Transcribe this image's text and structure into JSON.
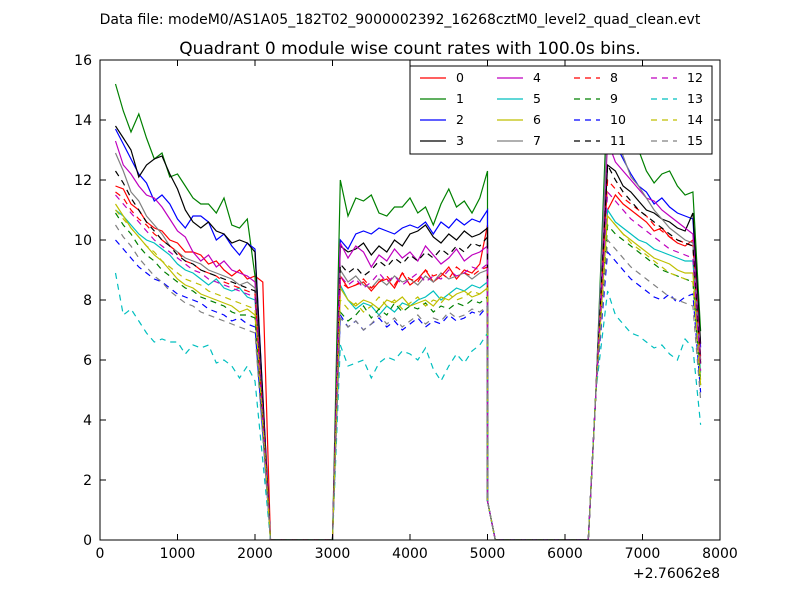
{
  "chart_data": {
    "type": "line",
    "suptitle": "Data file: modeM0/AS1A05_182T02_9000002392_16268cztM0_level2_quad_clean.evt",
    "title": "Quadrant 0 module wise count rates with 100.0s bins.",
    "xlabel": "",
    "ylabel": "",
    "xlim": [
      0,
      8000
    ],
    "ylim": [
      0,
      16
    ],
    "x_offset_label": "+2.76062e8",
    "xticks": [
      "0",
      "1000",
      "2000",
      "3000",
      "4000",
      "5000",
      "6000",
      "7000",
      "8000"
    ],
    "yticks": [
      "0",
      "2",
      "4",
      "6",
      "8",
      "10",
      "12",
      "14",
      "16"
    ],
    "grid": false,
    "legend": {
      "placement": "top-right",
      "columns": 4
    },
    "segments": [
      {
        "x_start": 200,
        "step": 100,
        "n": 20
      },
      {
        "x_start": 3100,
        "step": 100,
        "n": 20
      },
      {
        "x_start": 6550,
        "step": 100,
        "n": 12
      }
    ],
    "gap_x": [
      2200,
      2300,
      2900,
      3000,
      5000,
      5100,
      6300,
      6400
    ],
    "series": [
      {
        "name": "0",
        "color": "#ff0000",
        "dash": false,
        "seg1": [
          11.8,
          11.7,
          11.2,
          11.0,
          10.6,
          10.4,
          10.3,
          10.0,
          9.9,
          9.6,
          9.6,
          9.5,
          9.2,
          9.3,
          9.0,
          8.8,
          9.0,
          8.7,
          8.8,
          8.6
        ],
        "seg2": [
          8.8,
          8.4,
          8.5,
          8.6,
          8.3,
          8.6,
          8.7,
          8.4,
          8.9,
          8.5,
          8.7,
          9.0,
          8.6,
          8.8,
          9.1,
          8.7,
          9.0,
          8.9,
          9.2,
          10.5
        ],
        "seg3": [
          11.0,
          11.5,
          11.2,
          11.0,
          10.8,
          10.6,
          10.3,
          10.4,
          10.1,
          9.9,
          9.8,
          10.0
        ]
      },
      {
        "name": "1",
        "color": "#008000",
        "dash": false,
        "seg1": [
          15.2,
          14.3,
          13.6,
          14.2,
          13.4,
          12.7,
          12.9,
          12.1,
          12.2,
          11.8,
          11.4,
          11.2,
          11.2,
          10.9,
          11.4,
          10.5,
          10.4,
          10.7,
          8.8,
          null
        ],
        "seg2": [
          12.0,
          10.8,
          11.4,
          11.3,
          11.5,
          10.9,
          10.8,
          11.1,
          11.1,
          11.4,
          10.9,
          11.1,
          10.5,
          11.2,
          11.7,
          11.1,
          11.3,
          10.9,
          11.4,
          12.3
        ],
        "seg3": [
          15.0,
          14.3,
          13.9,
          13.3,
          13.0,
          12.3,
          11.9,
          12.2,
          12.3,
          11.8,
          11.5,
          11.6
        ]
      },
      {
        "name": "2",
        "color": "#0000ff",
        "dash": false,
        "seg1": [
          13.7,
          13.2,
          12.7,
          12.2,
          11.9,
          11.3,
          11.5,
          11.2,
          10.7,
          10.4,
          10.8,
          10.8,
          10.6,
          10.0,
          10.2,
          9.8,
          9.5,
          9.9,
          9.7,
          null
        ],
        "seg2": [
          10.0,
          9.7,
          10.2,
          10.3,
          10.2,
          10.4,
          10.3,
          10.2,
          10.4,
          10.5,
          10.4,
          10.6,
          10.2,
          10.6,
          10.4,
          10.7,
          10.5,
          10.7,
          10.6,
          11.0
        ],
        "seg3": [
          14.0,
          13.2,
          12.7,
          12.2,
          11.8,
          11.6,
          11.2,
          11.4,
          11.1,
          10.9,
          10.8,
          10.7
        ]
      },
      {
        "name": "3",
        "color": "#000000",
        "dash": false,
        "seg1": [
          13.8,
          13.4,
          13.0,
          12.1,
          12.5,
          12.7,
          12.8,
          12.2,
          11.7,
          11.0,
          10.6,
          10.4,
          10.6,
          10.3,
          10.2,
          9.9,
          10.0,
          9.9,
          9.6,
          null
        ],
        "seg2": [
          9.8,
          9.6,
          9.7,
          9.9,
          9.5,
          9.8,
          9.6,
          10.0,
          9.8,
          10.2,
          10.3,
          10.5,
          10.1,
          9.9,
          10.2,
          10.0,
          10.3,
          10.1,
          10.2,
          10.4
        ],
        "seg3": [
          12.5,
          12.3,
          11.8,
          11.6,
          11.3,
          11.0,
          10.9,
          10.7,
          10.6,
          10.4,
          10.3,
          10.9
        ]
      },
      {
        "name": "4",
        "color": "#bf00bf",
        "dash": false,
        "seg1": [
          13.3,
          12.5,
          12.2,
          11.8,
          11.5,
          11.4,
          11.1,
          10.7,
          10.3,
          10.1,
          9.6,
          9.3,
          9.5,
          9.1,
          9.3,
          9.0,
          8.9,
          8.8,
          8.6,
          null
        ],
        "seg2": [
          9.9,
          9.4,
          9.8,
          9.6,
          9.1,
          9.5,
          9.3,
          9.7,
          9.4,
          9.6,
          9.3,
          9.8,
          9.5,
          9.2,
          9.4,
          9.7,
          9.3,
          9.5,
          9.6,
          9.8
        ],
        "seg3": [
          13.3,
          12.6,
          12.3,
          12.0,
          11.7,
          11.4,
          11.3,
          11.0,
          10.8,
          10.6,
          10.4,
          10.2
        ]
      },
      {
        "name": "5",
        "color": "#00bfbf",
        "dash": false,
        "seg1": [
          11.0,
          10.8,
          10.5,
          10.2,
          10.0,
          9.9,
          9.7,
          9.5,
          9.2,
          9.0,
          8.9,
          8.7,
          8.5,
          8.7,
          8.4,
          8.3,
          8.4,
          8.1,
          8.0,
          null
        ],
        "seg2": [
          8.5,
          8.0,
          7.7,
          7.9,
          7.8,
          7.5,
          7.8,
          7.6,
          7.9,
          7.8,
          8.0,
          8.1,
          8.3,
          8.0,
          8.2,
          8.4,
          8.3,
          8.5,
          8.4,
          8.6
        ],
        "seg3": [
          11.0,
          10.6,
          10.4,
          10.2,
          10.0,
          9.9,
          9.7,
          9.6,
          9.5,
          9.4,
          9.3,
          9.3
        ]
      },
      {
        "name": "6",
        "color": "#bfbf00",
        "dash": false,
        "seg1": [
          11.2,
          10.8,
          10.4,
          10.1,
          9.8,
          9.5,
          9.3,
          9.0,
          8.7,
          8.5,
          8.4,
          8.2,
          8.1,
          8.0,
          7.9,
          7.8,
          7.6,
          7.7,
          7.5,
          null
        ],
        "seg2": [
          8.4,
          8.0,
          7.8,
          8.0,
          7.9,
          7.7,
          8.0,
          7.9,
          8.1,
          7.8,
          7.9,
          8.0,
          7.8,
          8.1,
          8.0,
          8.2,
          8.3,
          8.1,
          8.2,
          8.4
        ],
        "seg3": [
          10.8,
          10.5,
          10.2,
          10.0,
          9.8,
          9.6,
          9.4,
          9.3,
          9.2,
          9.0,
          8.9,
          8.9
        ]
      },
      {
        "name": "7",
        "color": "#808080",
        "dash": false,
        "seg1": [
          12.9,
          12.3,
          11.6,
          11.3,
          10.8,
          10.5,
          10.2,
          9.8,
          9.6,
          9.4,
          9.3,
          9.2,
          9.0,
          8.9,
          8.8,
          8.7,
          8.5,
          8.6,
          8.4,
          null
        ],
        "seg2": [
          9.0,
          8.6,
          8.8,
          8.5,
          8.4,
          8.7,
          8.5,
          8.8,
          8.6,
          8.7,
          8.5,
          8.8,
          8.6,
          8.9,
          8.7,
          8.8,
          8.9,
          8.7,
          8.9,
          9.0
        ],
        "seg3": [
          14.0,
          13.5,
          12.8,
          12.1,
          11.8,
          11.4,
          11.0,
          10.7,
          10.4,
          10.2,
          10.0,
          9.9
        ]
      },
      {
        "name": "8",
        "color": "#ff0000",
        "dash": true,
        "seg1": [
          11.6,
          11.4,
          11.0,
          10.7,
          10.5,
          10.2,
          10.0,
          9.8,
          9.6,
          9.3,
          9.2,
          9.0,
          8.9,
          8.8,
          8.6,
          8.5,
          8.4,
          8.3,
          8.2,
          null
        ],
        "seg2": [
          8.6,
          8.4,
          8.5,
          8.7,
          8.4,
          8.6,
          8.8,
          8.5,
          8.9,
          8.7,
          8.6,
          9.0,
          8.8,
          8.9,
          8.7,
          9.1,
          8.9,
          8.8,
          9.0,
          9.1
        ],
        "seg3": [
          12.0,
          11.7,
          11.4,
          11.2,
          11.0,
          10.8,
          10.5,
          10.3,
          10.1,
          10.0,
          9.9,
          9.8
        ]
      },
      {
        "name": "9",
        "color": "#008000",
        "dash": true,
        "seg1": [
          10.9,
          10.5,
          10.2,
          9.8,
          9.5,
          9.3,
          9.0,
          8.8,
          8.6,
          8.4,
          8.3,
          8.1,
          8.0,
          7.9,
          7.8,
          7.6,
          7.5,
          7.5,
          7.4,
          null
        ],
        "seg2": [
          7.6,
          7.3,
          7.5,
          7.8,
          7.4,
          7.7,
          7.5,
          7.9,
          7.6,
          7.8,
          7.7,
          7.9,
          7.6,
          7.8,
          7.7,
          7.9,
          7.8,
          8.0,
          7.9,
          8.1
        ],
        "seg3": [
          10.5,
          10.2,
          10.0,
          9.8,
          9.6,
          9.4,
          9.2,
          9.0,
          8.9,
          8.8,
          8.7,
          8.6
        ]
      },
      {
        "name": "10",
        "color": "#0000ff",
        "dash": true,
        "seg1": [
          10.0,
          9.7,
          9.4,
          9.1,
          8.9,
          8.7,
          8.6,
          8.4,
          8.2,
          8.1,
          8.0,
          7.9,
          7.7,
          7.6,
          7.5,
          7.3,
          7.4,
          7.2,
          7.1,
          null
        ],
        "seg2": [
          7.5,
          7.1,
          7.3,
          7.0,
          7.2,
          7.4,
          7.1,
          7.3,
          7.0,
          7.2,
          7.4,
          7.1,
          7.3,
          7.2,
          7.5,
          7.3,
          7.4,
          7.6,
          7.5,
          7.8
        ],
        "seg3": [
          9.6,
          9.3,
          9.0,
          8.7,
          8.5,
          8.3,
          8.1,
          8.0,
          8.2,
          7.9,
          8.1,
          8.2
        ]
      },
      {
        "name": "11",
        "color": "#000000",
        "dash": true,
        "seg1": [
          12.3,
          11.9,
          11.4,
          11.0,
          10.6,
          10.3,
          10.0,
          9.8,
          9.5,
          9.3,
          9.2,
          9.0,
          8.9,
          8.8,
          8.7,
          8.6,
          8.5,
          8.4,
          8.3,
          null
        ],
        "seg2": [
          9.2,
          8.9,
          9.1,
          8.8,
          9.0,
          9.3,
          9.1,
          9.4,
          9.2,
          9.5,
          9.3,
          9.6,
          9.4,
          9.7,
          9.5,
          9.8,
          9.6,
          9.9,
          9.8,
          10.1
        ],
        "seg3": [
          12.5,
          12.0,
          11.6,
          11.3,
          11.0,
          10.8,
          10.6,
          10.4,
          10.2,
          10.0,
          9.9,
          9.8
        ]
      },
      {
        "name": "12",
        "color": "#bf00bf",
        "dash": true,
        "seg1": [
          11.5,
          11.2,
          10.9,
          10.6,
          10.3,
          10.0,
          9.8,
          9.6,
          9.4,
          9.2,
          9.0,
          8.9,
          8.7,
          8.6,
          8.5,
          8.4,
          8.3,
          8.2,
          8.1,
          null
        ],
        "seg2": [
          8.8,
          8.5,
          8.7,
          8.4,
          8.6,
          8.9,
          8.6,
          8.8,
          8.5,
          8.7,
          8.9,
          8.6,
          8.8,
          8.7,
          9.0,
          8.8,
          8.9,
          9.1,
          9.0,
          9.2
        ],
        "seg3": [
          11.6,
          11.3,
          11.0,
          10.7,
          10.5,
          10.3,
          10.1,
          9.9,
          9.7,
          9.6,
          9.5,
          9.4
        ]
      },
      {
        "name": "13",
        "color": "#00bfbf",
        "dash": true,
        "seg1": [
          8.9,
          7.5,
          7.7,
          7.3,
          6.9,
          6.6,
          6.7,
          6.6,
          6.6,
          6.2,
          6.5,
          6.4,
          6.5,
          5.9,
          6.0,
          5.8,
          5.4,
          5.8,
          5.3,
          null
        ],
        "seg2": [
          6.5,
          5.8,
          5.9,
          6.0,
          5.4,
          5.9,
          6.1,
          6.0,
          6.3,
          6.2,
          6.0,
          6.4,
          5.7,
          5.3,
          5.8,
          6.2,
          5.9,
          6.3,
          6.5,
          6.9
        ],
        "seg3": [
          8.3,
          7.5,
          7.2,
          6.9,
          6.8,
          6.6,
          6.4,
          6.5,
          6.2,
          6.0,
          6.7,
          6.4
        ]
      },
      {
        "name": "14",
        "color": "#bfbf00",
        "dash": true,
        "seg1": [
          11.0,
          10.7,
          10.4,
          10.1,
          9.8,
          9.6,
          9.3,
          9.1,
          8.9,
          8.7,
          8.6,
          8.5,
          8.3,
          8.2,
          8.1,
          8.0,
          7.9,
          7.8,
          7.7,
          null
        ],
        "seg2": [
          8.0,
          7.7,
          7.9,
          7.6,
          7.8,
          8.1,
          7.8,
          8.0,
          7.7,
          7.9,
          8.1,
          7.8,
          8.0,
          7.9,
          8.2,
          8.0,
          8.1,
          8.3,
          8.2,
          8.4
        ],
        "seg3": [
          10.8,
          10.5,
          10.2,
          9.9,
          9.7,
          9.5,
          9.3,
          9.1,
          8.9,
          8.8,
          8.7,
          8.6
        ]
      },
      {
        "name": "15",
        "color": "#808080",
        "dash": true,
        "seg1": [
          10.5,
          10.1,
          9.8,
          9.4,
          9.1,
          8.8,
          8.6,
          8.3,
          8.1,
          7.9,
          7.8,
          7.6,
          7.5,
          7.4,
          7.3,
          7.2,
          7.1,
          7.0,
          6.9,
          null
        ],
        "seg2": [
          7.4,
          7.1,
          7.3,
          7.0,
          7.2,
          7.5,
          7.2,
          7.4,
          7.1,
          7.3,
          7.5,
          7.2,
          7.4,
          7.3,
          7.6,
          7.4,
          7.5,
          7.7,
          7.6,
          7.8
        ],
        "seg3": [
          10.0,
          9.7,
          9.4,
          9.1,
          8.9,
          8.7,
          8.5,
          8.3,
          8.1,
          8.0,
          7.9,
          7.8
        ]
      }
    ]
  }
}
